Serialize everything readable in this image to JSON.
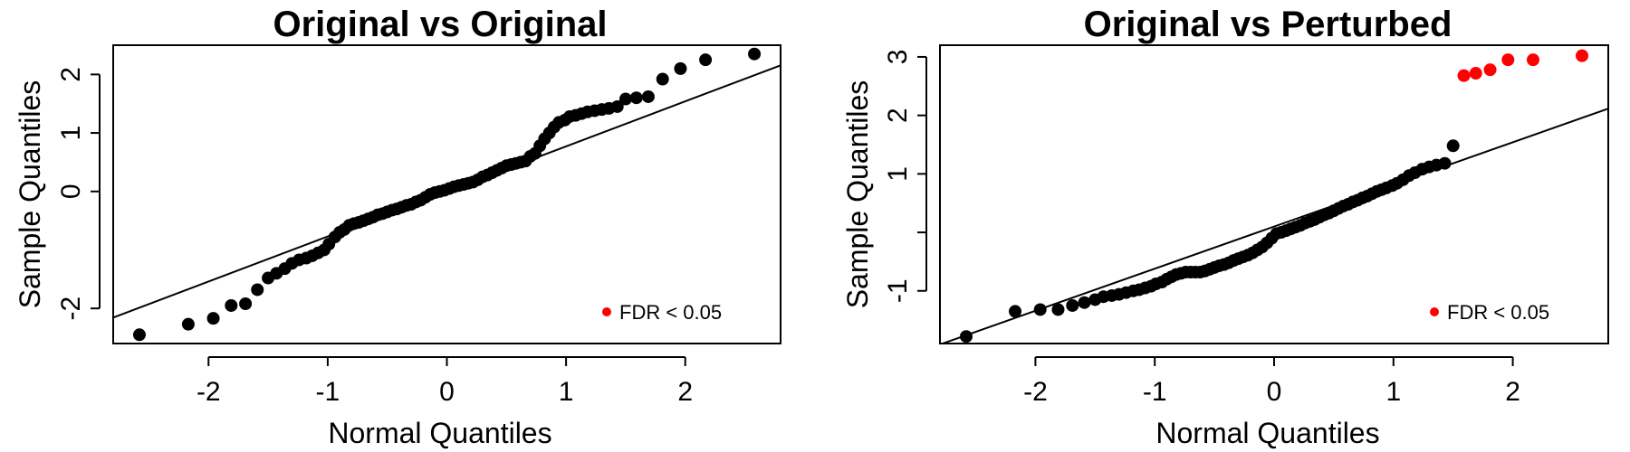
{
  "chart_data": [
    {
      "type": "scatter",
      "title": "Original vs Original",
      "xlabel": "Normal Quantiles",
      "ylabel": "Sample Quantiles",
      "xlim": [
        -2.8,
        2.8
      ],
      "ylim": [
        -2.6,
        2.5
      ],
      "xticks": [
        -2,
        -1,
        0,
        1,
        2
      ],
      "yticks": [
        -2,
        0,
        1,
        2
      ],
      "ytick_labels": [
        "-2",
        "0",
        "1",
        "2"
      ],
      "grid": false,
      "legend_position": "bottom-right",
      "legend": [
        {
          "label": "FDR < 0.05",
          "color": "#ff0000"
        }
      ],
      "reference_line": {
        "slope": 0.77,
        "intercept": 0.0
      },
      "colors": {
        "normal": "#000000",
        "significant": "#ff0000"
      },
      "series": [
        {
          "group": "not-significant",
          "x": [
            -2.58,
            -2.17,
            -1.96,
            -1.81,
            -1.69,
            -1.59,
            -1.5,
            -1.43,
            -1.36,
            -1.3,
            -1.24,
            -1.18,
            -1.13,
            -1.08,
            -1.03,
            -0.99,
            -0.94,
            -0.9,
            -0.86,
            -0.82,
            -0.78,
            -0.74,
            -0.7,
            -0.66,
            -0.62,
            -0.58,
            -0.54,
            -0.5,
            -0.46,
            -0.42,
            -0.38,
            -0.34,
            -0.3,
            -0.26,
            -0.22,
            -0.18,
            -0.14,
            -0.1,
            -0.06,
            -0.02,
            0.02,
            0.06,
            0.1,
            0.14,
            0.18,
            0.22,
            0.26,
            0.3,
            0.34,
            0.38,
            0.42,
            0.46,
            0.5,
            0.54,
            0.58,
            0.62,
            0.66,
            0.7,
            0.74,
            0.78,
            0.82,
            0.86,
            0.9,
            0.94,
            0.99,
            1.03,
            1.08,
            1.13,
            1.18,
            1.24,
            1.3,
            1.36,
            1.43,
            1.5,
            1.59,
            1.69,
            1.81,
            1.96,
            2.17,
            2.58
          ],
          "y": [
            -2.45,
            -2.27,
            -2.17,
            -1.95,
            -1.92,
            -1.68,
            -1.48,
            -1.4,
            -1.32,
            -1.23,
            -1.17,
            -1.14,
            -1.1,
            -1.05,
            -1.0,
            -0.9,
            -0.78,
            -0.7,
            -0.65,
            -0.58,
            -0.55,
            -0.53,
            -0.5,
            -0.47,
            -0.44,
            -0.4,
            -0.38,
            -0.35,
            -0.32,
            -0.3,
            -0.27,
            -0.24,
            -0.22,
            -0.18,
            -0.15,
            -0.1,
            -0.05,
            -0.02,
            0.0,
            0.02,
            0.05,
            0.08,
            0.1,
            0.12,
            0.14,
            0.16,
            0.2,
            0.25,
            0.28,
            0.32,
            0.36,
            0.4,
            0.44,
            0.46,
            0.48,
            0.5,
            0.52,
            0.6,
            0.65,
            0.78,
            0.9,
            1.0,
            1.1,
            1.18,
            1.22,
            1.28,
            1.3,
            1.33,
            1.36,
            1.38,
            1.4,
            1.42,
            1.45,
            1.58,
            1.6,
            1.62,
            1.92,
            2.1,
            2.25,
            2.35
          ]
        }
      ]
    },
    {
      "type": "scatter",
      "title": "Original vs Perturbed",
      "xlabel": "Normal Quantiles",
      "ylabel": "Sample Quantiles",
      "xlim": [
        -2.8,
        2.8
      ],
      "ylim": [
        -1.9,
        3.2
      ],
      "xticks": [
        -2,
        -1,
        0,
        1,
        2
      ],
      "yticks": [
        -1,
        0,
        1,
        2,
        3
      ],
      "ytick_labels": [
        "-1",
        "",
        "1",
        "2",
        "3"
      ],
      "grid": false,
      "legend_position": "bottom-right",
      "legend": [
        {
          "label": "FDR < 0.05",
          "color": "#ff0000"
        }
      ],
      "reference_line": {
        "slope": 0.72,
        "intercept": 0.1
      },
      "colors": {
        "normal": "#000000",
        "significant": "#ff0000"
      },
      "series": [
        {
          "group": "not-significant",
          "x": [
            -2.58,
            -2.17,
            -1.96,
            -1.81,
            -1.69,
            -1.59,
            -1.5,
            -1.43,
            -1.36,
            -1.3,
            -1.24,
            -1.18,
            -1.13,
            -1.08,
            -1.03,
            -0.99,
            -0.94,
            -0.9,
            -0.86,
            -0.82,
            -0.78,
            -0.74,
            -0.7,
            -0.66,
            -0.62,
            -0.58,
            -0.54,
            -0.5,
            -0.46,
            -0.42,
            -0.38,
            -0.34,
            -0.3,
            -0.26,
            -0.22,
            -0.18,
            -0.14,
            -0.1,
            -0.06,
            -0.02,
            0.02,
            0.06,
            0.1,
            0.14,
            0.18,
            0.22,
            0.26,
            0.3,
            0.34,
            0.38,
            0.42,
            0.46,
            0.5,
            0.54,
            0.58,
            0.62,
            0.66,
            0.7,
            0.74,
            0.78,
            0.82,
            0.86,
            0.9,
            0.94,
            0.99,
            1.03,
            1.08,
            1.13,
            1.18,
            1.24,
            1.3,
            1.36,
            1.43,
            1.5
          ],
          "y": [
            -1.78,
            -1.35,
            -1.32,
            -1.32,
            -1.25,
            -1.2,
            -1.15,
            -1.1,
            -1.08,
            -1.06,
            -1.03,
            -1.0,
            -0.98,
            -0.95,
            -0.92,
            -0.88,
            -0.85,
            -0.8,
            -0.76,
            -0.72,
            -0.7,
            -0.68,
            -0.68,
            -0.68,
            -0.68,
            -0.66,
            -0.63,
            -0.6,
            -0.57,
            -0.55,
            -0.52,
            -0.48,
            -0.45,
            -0.42,
            -0.39,
            -0.35,
            -0.3,
            -0.25,
            -0.18,
            -0.1,
            -0.02,
            0.0,
            0.03,
            0.06,
            0.09,
            0.12,
            0.16,
            0.19,
            0.22,
            0.26,
            0.3,
            0.33,
            0.37,
            0.41,
            0.45,
            0.48,
            0.52,
            0.55,
            0.59,
            0.62,
            0.66,
            0.7,
            0.73,
            0.76,
            0.8,
            0.84,
            0.9,
            0.97,
            1.02,
            1.08,
            1.12,
            1.15,
            1.18,
            1.48
          ]
        },
        {
          "group": "significant",
          "x": [
            1.59,
            1.69,
            1.81,
            1.96,
            2.17,
            2.58
          ],
          "y": [
            2.68,
            2.72,
            2.78,
            2.95,
            2.95,
            3.02
          ]
        }
      ]
    }
  ]
}
